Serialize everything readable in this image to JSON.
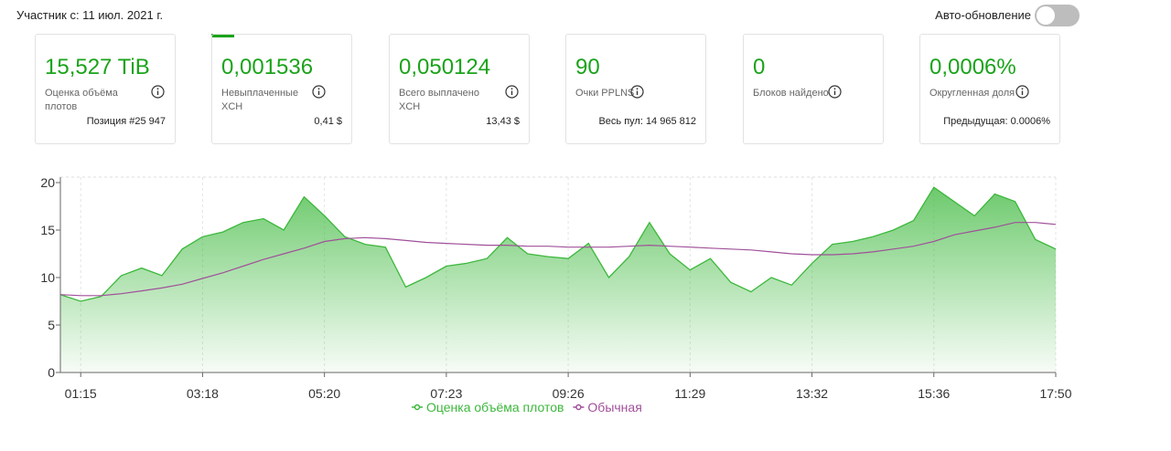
{
  "header": {
    "member_since": "Участник с: 11 июл. 2021 г.",
    "auto_refresh": "Авто-обновление"
  },
  "cards": [
    {
      "value": "15,527 TiB",
      "label": "Оценка объёма плотов",
      "sub": "Позиция #25 947"
    },
    {
      "value": "0,001536",
      "label": "Невыплаченные XCH",
      "sub": "0,41 $"
    },
    {
      "value": "0,050124",
      "label": "Всего выплачено XCH",
      "sub": "13,43 $"
    },
    {
      "value": "90",
      "label": "Очки PPLNS",
      "sub": "Весь пул: 14 965 812"
    },
    {
      "value": "0",
      "label": "Блоков найдено"
    },
    {
      "value": "0,0006%",
      "label": "Округленная доля",
      "sub": "Предыдущая: 0.0006%"
    }
  ],
  "chart_data": {
    "type": "area-line",
    "categories": [
      null,
      "01:15",
      null,
      null,
      null,
      null,
      null,
      "03:18",
      null,
      null,
      null,
      null,
      null,
      "05:20",
      null,
      null,
      null,
      null,
      null,
      "07:23",
      null,
      null,
      null,
      null,
      null,
      "09:26",
      null,
      null,
      null,
      null,
      null,
      "11:29",
      null,
      null,
      null,
      null,
      null,
      "13:32",
      null,
      null,
      null,
      null,
      null,
      "15:36",
      null,
      null,
      null,
      null,
      null,
      "17:50"
    ],
    "series": [
      {
        "name": "Оценка объёма плотов",
        "color": "#3cb83c",
        "fill": true,
        "values": [
          8.2,
          7.5,
          8.0,
          10.2,
          11.0,
          10.2,
          13.0,
          14.3,
          14.8,
          15.8,
          16.2,
          15.0,
          18.5,
          16.5,
          14.3,
          13.5,
          13.2,
          9.0,
          10.0,
          11.2,
          11.5,
          12.0,
          14.2,
          12.5,
          12.2,
          12.0,
          13.6,
          10.0,
          12.2,
          15.8,
          12.5,
          10.8,
          12.0,
          9.5,
          8.5,
          10.0,
          9.2,
          11.5,
          13.5,
          13.8,
          14.3,
          15.0,
          16.0,
          19.5,
          18.0,
          16.5,
          18.8,
          18.0,
          14.0,
          13.0
        ]
      },
      {
        "name": "Обычная",
        "color": "#a0509a",
        "fill": false,
        "values": [
          8.2,
          8.1,
          8.1,
          8.3,
          8.6,
          8.9,
          9.3,
          9.9,
          10.5,
          11.2,
          11.9,
          12.5,
          13.1,
          13.8,
          14.1,
          14.2,
          14.1,
          13.9,
          13.7,
          13.6,
          13.5,
          13.4,
          13.4,
          13.3,
          13.3,
          13.2,
          13.2,
          13.2,
          13.3,
          13.4,
          13.3,
          13.2,
          13.1,
          13.0,
          12.9,
          12.7,
          12.5,
          12.4,
          12.4,
          12.5,
          12.7,
          13.0,
          13.3,
          13.8,
          14.5,
          14.9,
          15.3,
          15.8,
          15.8,
          15.6
        ]
      }
    ],
    "ylim": [
      0,
      20
    ],
    "yticks": [
      0,
      5,
      10,
      15,
      20
    ],
    "grid": true
  }
}
